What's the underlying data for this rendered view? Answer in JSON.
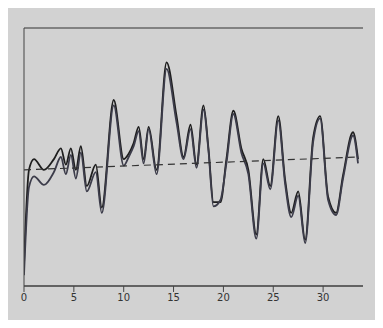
{
  "chart_data": {
    "type": "line",
    "x": [
      0,
      0.5,
      1.0,
      2.0,
      3.0,
      3.7,
      4.2,
      4.7,
      5.2,
      5.7,
      6.3,
      7.2,
      7.8,
      9.0,
      10.0,
      10.5,
      11.0,
      11.5,
      12.0,
      12.5,
      13.3,
      14.3,
      15.3,
      16.0,
      16.7,
      17.3,
      18.0,
      18.5,
      19.0,
      19.7,
      20.3,
      21.0,
      21.8,
      22.5,
      23.3,
      24.0,
      24.7,
      25.5,
      26.2,
      26.8,
      27.5,
      28.2,
      29.0,
      29.7,
      30.5,
      31.3,
      32.0,
      33.0,
      33.5
    ],
    "series": [
      {
        "color": "#1e1e1e",
        "line_style": "solid",
        "values": [
          -5.0,
          -0.6,
          -0.1,
          -0.6,
          -0.1,
          0.4,
          -0.35,
          0.4,
          -0.6,
          0.5,
          -1.35,
          -0.35,
          -2.35,
          2.65,
          -0.1,
          0.15,
          0.65,
          1.4,
          -0.1,
          1.4,
          -0.6,
          4.4,
          1.9,
          0.0,
          1.5,
          -0.35,
          2.4,
          0.4,
          -2.1,
          -2.1,
          -0.1,
          2.15,
          0.4,
          -0.6,
          -3.6,
          -0.1,
          -1.35,
          1.9,
          -1.1,
          -2.6,
          -1.6,
          -3.85,
          0.9,
          1.9,
          -1.85,
          -2.6,
          -0.85,
          1.15,
          -0.1
        ]
      },
      {
        "color": "#3c3c4a",
        "line_style": "solid",
        "values": [
          -5.5,
          -1.4,
          -0.9,
          -1.3,
          -0.7,
          0.0,
          -0.8,
          0.1,
          -1.0,
          0.2,
          -1.6,
          -0.7,
          -2.6,
          2.4,
          -0.4,
          0.0,
          0.5,
          1.2,
          -0.3,
          1.3,
          -0.8,
          4.1,
          1.6,
          -0.1,
          1.3,
          -0.5,
          2.2,
          0.3,
          -2.3,
          -2.0,
          -0.3,
          2.0,
          0.2,
          -0.8,
          -3.8,
          -0.3,
          -1.5,
          1.7,
          -1.3,
          -2.8,
          -1.8,
          -4.0,
          0.7,
          1.8,
          -2.0,
          -2.7,
          -1.0,
          1.0,
          -0.3
        ]
      },
      {
        "color": "#333333",
        "line_style": "dashed",
        "values": [
          -0.6,
          null,
          null,
          null,
          null,
          null,
          null,
          null,
          null,
          null,
          null,
          null,
          null,
          null,
          null,
          null,
          null,
          null,
          null,
          null,
          null,
          null,
          null,
          null,
          null,
          null,
          null,
          null,
          null,
          null,
          null,
          null,
          null,
          null,
          null,
          null,
          null,
          null,
          null,
          null,
          null,
          null,
          null,
          null,
          null,
          null,
          null,
          null,
          0.0
        ]
      }
    ],
    "xlim": [
      0,
      34
    ],
    "xticks": [
      0,
      5,
      10,
      15,
      20,
      25,
      30
    ],
    "ylim": [
      -6,
      6
    ],
    "yticks": [
      0
    ],
    "grid": true,
    "tick_labels": "x"
  }
}
